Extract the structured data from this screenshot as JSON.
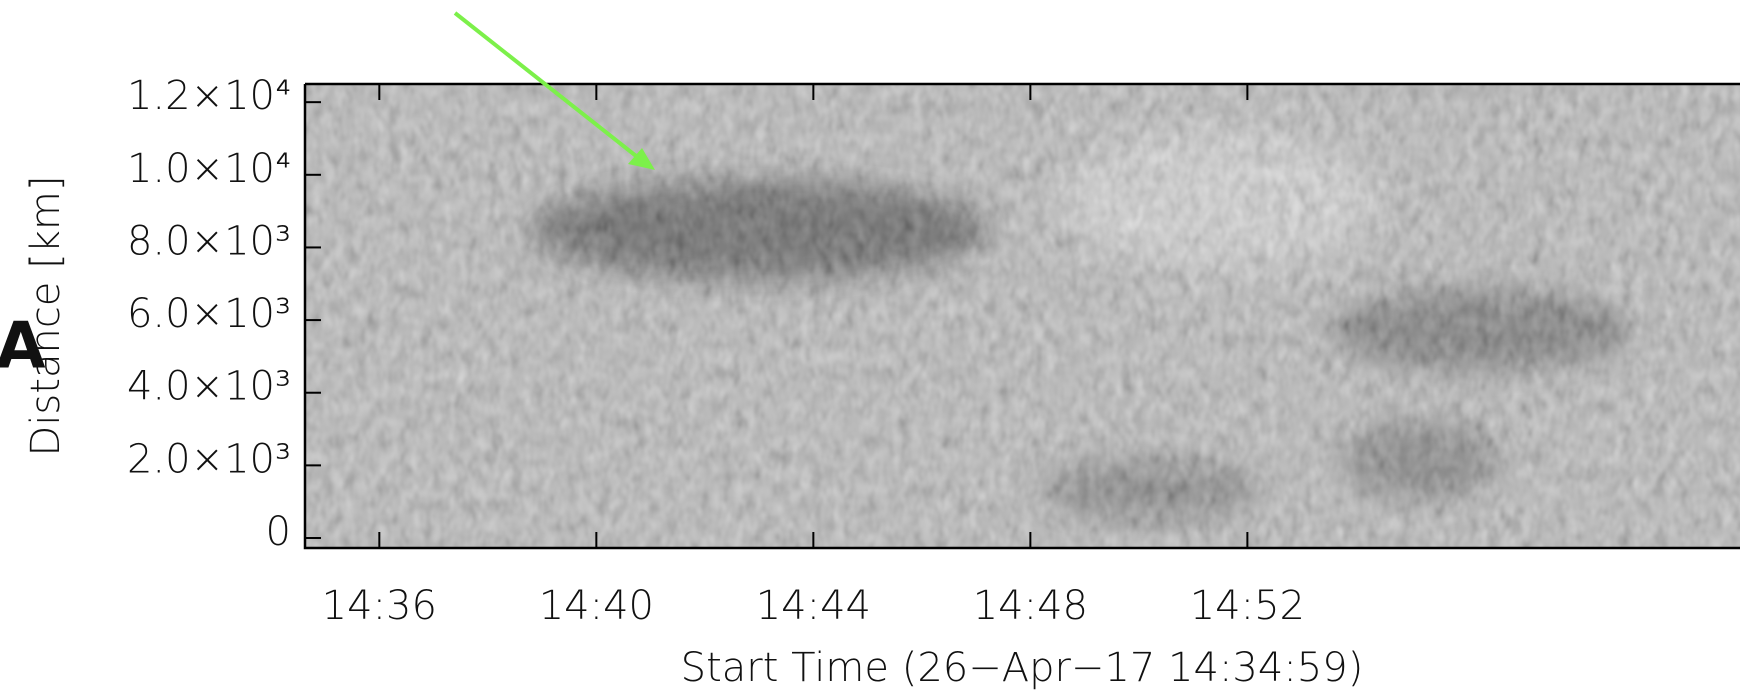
{
  "chart_data": {
    "type": "heatmap",
    "panel_label": "A",
    "xlabel": "Start Time (26−Apr−17 14:34:59)",
    "ylabel": "Distance [km]",
    "xlim": [
      874.63,
      901.08
    ],
    "xticks": [
      {
        "value": 876,
        "label": "14:36"
      },
      {
        "value": 880,
        "label": "14:40"
      },
      {
        "value": 884,
        "label": "14:44"
      },
      {
        "value": 888,
        "label": "14:48"
      },
      {
        "value": 892,
        "label": "14:52"
      }
    ],
    "ylim": [
      -275,
      12500
    ],
    "yticks": [
      {
        "value": 0,
        "label": "0"
      },
      {
        "value": 2000,
        "label": "2.0×10³"
      },
      {
        "value": 4000,
        "label": "4.0×10³"
      },
      {
        "value": 6000,
        "label": "6.0×10³"
      },
      {
        "value": 8000,
        "label": "8.0×10³"
      },
      {
        "value": 10000,
        "label": "1.0×10⁴"
      },
      {
        "value": 12000,
        "label": "1.2×10⁴"
      }
    ]
  }
}
